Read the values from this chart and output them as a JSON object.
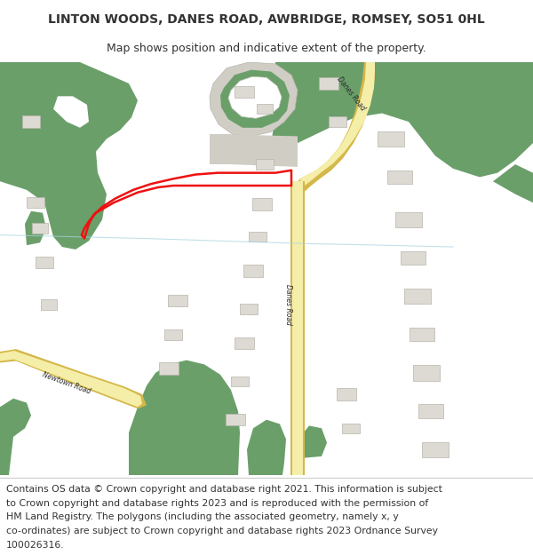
{
  "title": "LINTON WOODS, DANES ROAD, AWBRIDGE, ROMSEY, SO51 0HL",
  "subtitle": "Map shows position and indicative extent of the property.",
  "footer_lines": [
    "Contains OS data © Crown copyright and database right 2021. This information is subject",
    "to Crown copyright and database rights 2023 and is reproduced with the permission of",
    "HM Land Registry. The polygons (including the associated geometry, namely x, y",
    "co-ordinates) are subject to Crown copyright and database rights 2023 Ordnance Survey",
    "100026316."
  ],
  "white": "#ffffff",
  "map_bg": "#f7f4ef",
  "green": "#6a9f6a",
  "road_fill": "#f5eea8",
  "road_edge": "#d4b84a",
  "bld_fill": "#dddad3",
  "bld_edge": "#b8b4ac",
  "red": "#ee1111",
  "text_dark": "#333333",
  "stream_color": "#a8d4e0",
  "title_fs": 10,
  "sub_fs": 9,
  "footer_fs": 7.8,
  "figsize": [
    6.0,
    6.25
  ],
  "dpi": 100
}
